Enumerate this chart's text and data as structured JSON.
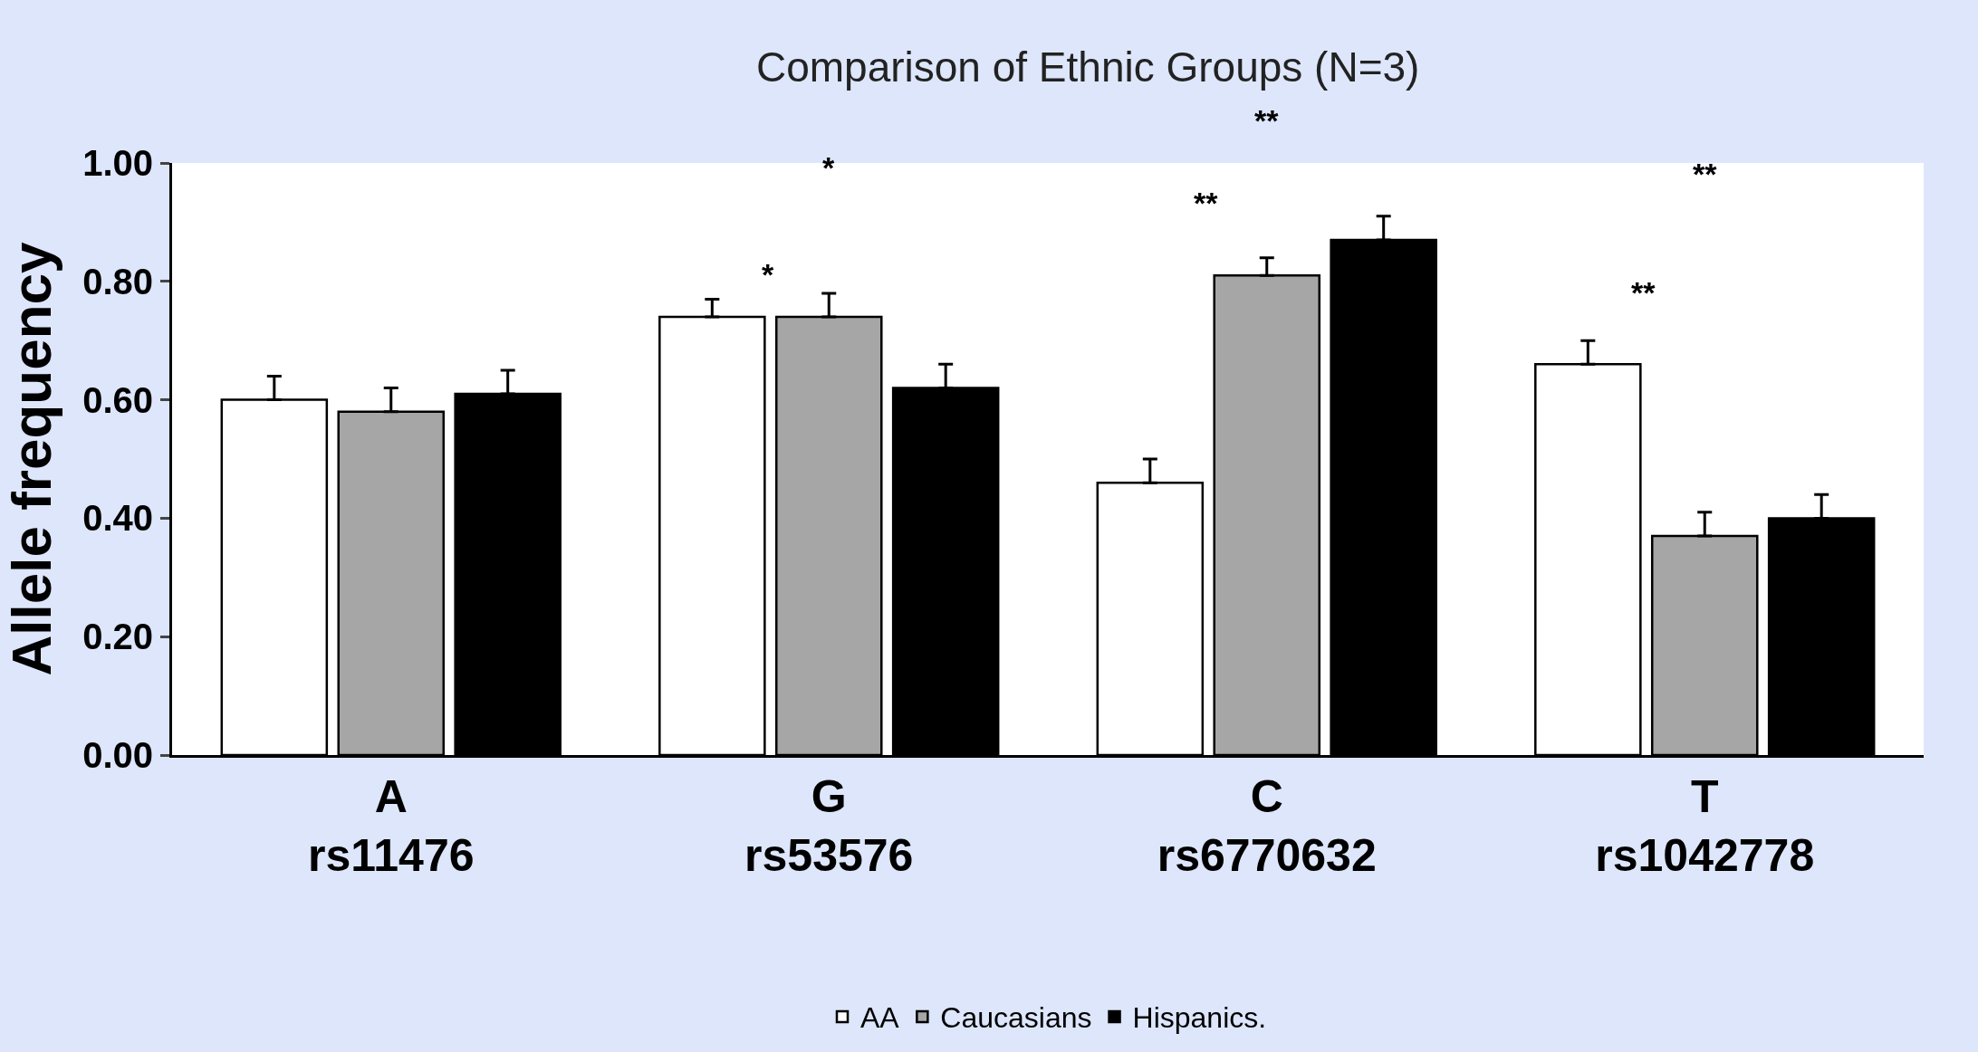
{
  "chart_data": {
    "type": "bar",
    "title": "Comparison of Ethnic Groups (N=3)",
    "ylabel": "Allele frequency",
    "categories": [
      "A\nrs11476",
      "G\nrs53576",
      "C\nrs6770632",
      "T\nrs1042778"
    ],
    "series": [
      {
        "name": "AA",
        "color": "#ffffff",
        "values": [
          0.6,
          0.74,
          0.46,
          0.66
        ],
        "errors": [
          [
            0.6,
            0.64
          ],
          [
            0.74,
            0.77
          ],
          [
            0.46,
            0.5
          ],
          [
            0.66,
            0.7
          ]
        ]
      },
      {
        "name": "Caucasians",
        "color": "#a6a6a6",
        "values": [
          0.58,
          0.74,
          0.81,
          0.37
        ],
        "errors": [
          [
            0.58,
            0.62
          ],
          [
            0.74,
            0.78
          ],
          [
            0.81,
            0.84
          ],
          [
            0.37,
            0.41
          ]
        ]
      },
      {
        "name": "Hispanics.",
        "color": "#000000",
        "values": [
          0.61,
          0.62,
          0.87,
          0.4
        ],
        "errors": [
          [
            0.61,
            0.65
          ],
          [
            0.62,
            0.66
          ],
          [
            0.87,
            0.91
          ],
          [
            0.4,
            0.44
          ]
        ]
      }
    ],
    "annotations": [
      "*",
      "*",
      "**",
      "**",
      "**",
      "**"
    ],
    "ylim": [
      0,
      1.0
    ],
    "yticks": [
      {
        "value": 0,
        "label": "0.00"
      },
      {
        "value": 0.2,
        "label": "0.20"
      },
      {
        "value": 0.4,
        "label": "0.40"
      },
      {
        "value": 0.6,
        "label": "0.60"
      },
      {
        "value": 0.8,
        "label": "0.80"
      },
      {
        "value": 1.0,
        "label": "1.00"
      }
    ],
    "legend": "bottom"
  }
}
